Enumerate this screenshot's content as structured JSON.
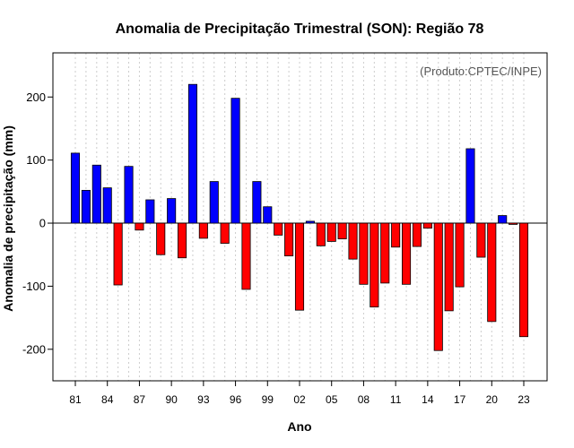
{
  "chart_data": {
    "type": "bar",
    "title": "Anomalia de Precipitação Trimestral (SON): Região 78",
    "xlabel": "Ano",
    "ylabel": "Anomalia de precipitação (mm)",
    "annotation": "(Produto:CPTEC/INPE)",
    "ylim": [
      -250,
      270
    ],
    "yticks": [
      -200,
      -100,
      0,
      100,
      200
    ],
    "grid": true,
    "positive_color": "#0000ff",
    "negative_color": "#ff0000",
    "years": [
      1981,
      1982,
      1983,
      1984,
      1985,
      1986,
      1987,
      1988,
      1989,
      1990,
      1991,
      1992,
      1993,
      1994,
      1995,
      1996,
      1997,
      1998,
      1999,
      2000,
      2001,
      2002,
      2003,
      2004,
      2005,
      2006,
      2007,
      2008,
      2009,
      2010,
      2011,
      2012,
      2013,
      2014,
      2015,
      2016,
      2017,
      2018,
      2019,
      2020,
      2021,
      2022,
      2023
    ],
    "xtick_labels": [
      "81",
      "84",
      "87",
      "90",
      "93",
      "96",
      "99",
      "02",
      "05",
      "08",
      "11",
      "14",
      "17",
      "20",
      "23"
    ],
    "xtick_years": [
      1981,
      1984,
      1987,
      1990,
      1993,
      1996,
      1999,
      2002,
      2005,
      2008,
      2011,
      2014,
      2017,
      2020,
      2023
    ],
    "values": [
      111,
      52,
      92,
      56,
      -98,
      90,
      -11,
      37,
      -50,
      39,
      -55,
      220,
      -24,
      66,
      -32,
      198,
      -105,
      66,
      26,
      -19,
      -52,
      -138,
      3,
      -36,
      -29,
      -25,
      -57,
      -97,
      -133,
      -95,
      -38,
      -97,
      -37,
      -8,
      -202,
      -139,
      -101,
      118,
      -54,
      -156,
      12,
      -2,
      -180
    ]
  }
}
